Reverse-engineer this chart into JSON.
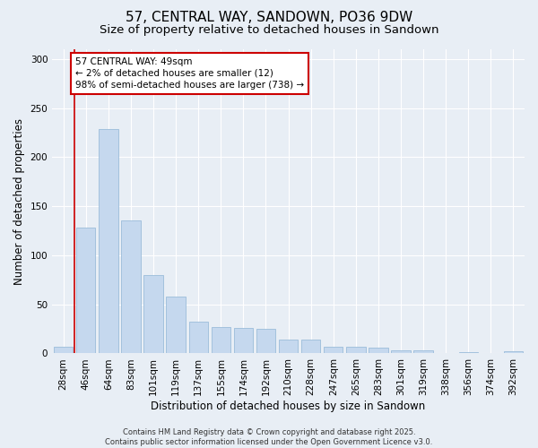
{
  "title": "57, CENTRAL WAY, SANDOWN, PO36 9DW",
  "subtitle": "Size of property relative to detached houses in Sandown",
  "xlabel": "Distribution of detached houses by size in Sandown",
  "ylabel": "Number of detached properties",
  "footer_line1": "Contains HM Land Registry data © Crown copyright and database right 2025.",
  "footer_line2": "Contains public sector information licensed under the Open Government Licence v3.0.",
  "categories": [
    "28sqm",
    "46sqm",
    "64sqm",
    "83sqm",
    "101sqm",
    "119sqm",
    "137sqm",
    "155sqm",
    "174sqm",
    "192sqm",
    "210sqm",
    "228sqm",
    "247sqm",
    "265sqm",
    "283sqm",
    "301sqm",
    "319sqm",
    "338sqm",
    "356sqm",
    "374sqm",
    "392sqm"
  ],
  "values": [
    7,
    128,
    229,
    136,
    80,
    58,
    32,
    27,
    26,
    25,
    14,
    14,
    7,
    7,
    6,
    3,
    3,
    0,
    1,
    0,
    2
  ],
  "bar_color": "#c5d8ee",
  "bar_edge_color": "#9bbcda",
  "annotation_text": "57 CENTRAL WAY: 49sqm\n← 2% of detached houses are smaller (12)\n98% of semi-detached houses are larger (738) →",
  "annotation_box_facecolor": "#ffffff",
  "annotation_box_edgecolor": "#cc0000",
  "vline_color": "#cc0000",
  "vline_x": 0.5,
  "ylim": [
    0,
    310
  ],
  "yticks": [
    0,
    50,
    100,
    150,
    200,
    250,
    300
  ],
  "background_color": "#e8eef5",
  "plot_background": "#e8eef5",
  "grid_color": "#ffffff",
  "title_fontsize": 11,
  "subtitle_fontsize": 9.5,
  "axis_label_fontsize": 8.5,
  "tick_fontsize": 7.5,
  "annotation_fontsize": 7.5,
  "footer_fontsize": 6.0
}
